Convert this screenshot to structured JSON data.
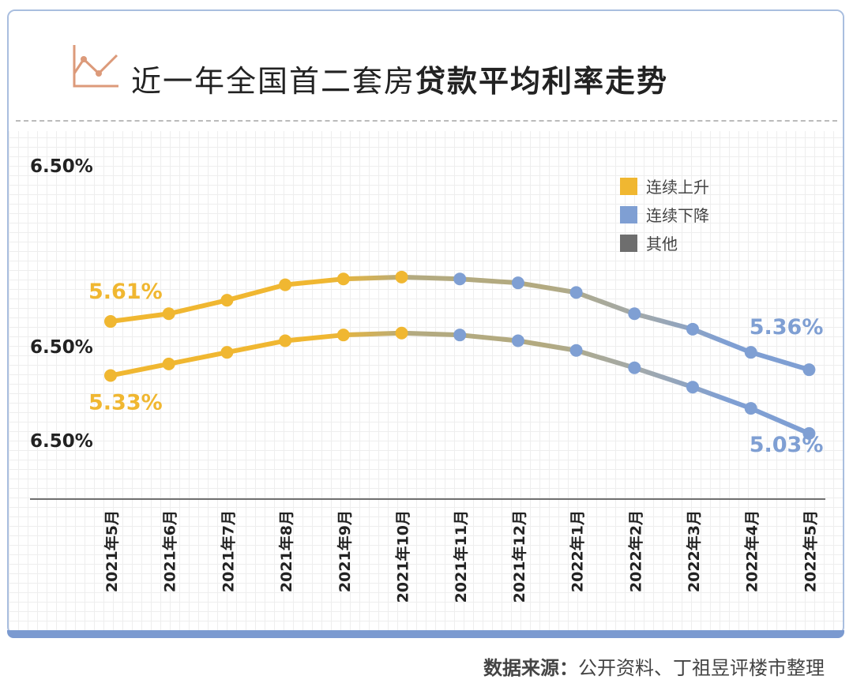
{
  "title": {
    "normal": "近一年全国首二套房",
    "bold": "贷款平均利率走势"
  },
  "footer": {
    "label": "数据来源：",
    "text": "公开资料、丁祖昱评楼市整理"
  },
  "chart_data": {
    "type": "line",
    "categories": [
      "2021年5月",
      "2021年6月",
      "2021年7月",
      "2021年8月",
      "2021年9月",
      "2021年10月",
      "2021年11月",
      "2021年12月",
      "2022年1月",
      "2022年2月",
      "2022年3月",
      "2022年4月",
      "2022年5月"
    ],
    "y_tick_labels": [
      "6.50%",
      "6.50%",
      "6.50%"
    ],
    "ylim": [
      4.69,
      6.6
    ],
    "grid": true,
    "legend_position": "top-right",
    "legend": [
      {
        "label": "连续上升",
        "color": "#f0b731"
      },
      {
        "label": "连续下降",
        "color": "#7f9fd3"
      },
      {
        "label": "其他",
        "color": "#6e6e6e"
      }
    ],
    "series": [
      {
        "values": [
          5.61,
          5.65,
          5.72,
          5.8,
          5.83,
          5.84,
          5.83,
          5.81,
          5.76,
          5.65,
          5.57,
          5.45,
          5.36
        ],
        "point_trend": [
          "up",
          "up",
          "up",
          "up",
          "up",
          "up",
          "down",
          "down",
          "down",
          "down",
          "down",
          "down",
          "down"
        ],
        "start_label": "5.61%",
        "end_label": "5.36%"
      },
      {
        "values": [
          5.33,
          5.39,
          5.45,
          5.51,
          5.54,
          5.55,
          5.54,
          5.51,
          5.46,
          5.37,
          5.27,
          5.16,
          5.03
        ],
        "point_trend": [
          "up",
          "up",
          "up",
          "up",
          "up",
          "up",
          "down",
          "down",
          "down",
          "down",
          "down",
          "down",
          "down"
        ],
        "start_label": "5.33%",
        "end_label": "5.03%"
      }
    ],
    "colors": {
      "up": "#f0b731",
      "down": "#7f9fd3",
      "mid": "#b3aa80",
      "other": "#6e6e6e"
    }
  }
}
